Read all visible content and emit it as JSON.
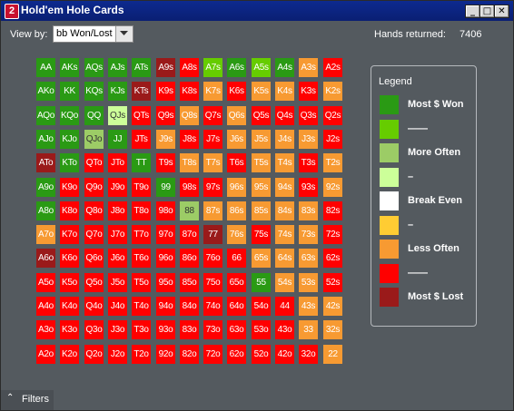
{
  "window": {
    "title": "Hold'em Hole Cards",
    "icon_label": "2",
    "min_glyph": "_",
    "max_glyph": "□",
    "close_glyph": "✕"
  },
  "toolbar": {
    "view_label": "View by:",
    "view_value": "bb Won/Lost",
    "hands_label": "Hands returned:",
    "hands_value": "7406"
  },
  "colors": {
    "G": "#2a9a14",
    "L": "#66cc00",
    "O": "#f79a32",
    "R": "#ff0000",
    "D": "#9a1a1a",
    "P": "#9ccc66",
    "Y": "#ccff99",
    "W": "#ffffff",
    "Yl": "#ffcc33"
  },
  "grid": [
    [
      "AA",
      "AKs",
      "AQs",
      "AJs",
      "ATs",
      "A9s",
      "A8s",
      "A7s",
      "A6s",
      "A5s",
      "A4s",
      "A3s",
      "A2s"
    ],
    [
      "AKo",
      "KK",
      "KQs",
      "KJs",
      "KTs",
      "K9s",
      "K8s",
      "K7s",
      "K6s",
      "K5s",
      "K4s",
      "K3s",
      "K2s"
    ],
    [
      "AQo",
      "KQo",
      "QQ",
      "QJs",
      "QTs",
      "Q9s",
      "Q8s",
      "Q7s",
      "Q6s",
      "Q5s",
      "Q4s",
      "Q3s",
      "Q2s"
    ],
    [
      "AJo",
      "KJo",
      "QJo",
      "JJ",
      "JTs",
      "J9s",
      "J8s",
      "J7s",
      "J6s",
      "J5s",
      "J4s",
      "J3s",
      "J2s"
    ],
    [
      "ATo",
      "KTo",
      "QTo",
      "JTo",
      "TT",
      "T9s",
      "T8s",
      "T7s",
      "T6s",
      "T5s",
      "T4s",
      "T3s",
      "T2s"
    ],
    [
      "A9o",
      "K9o",
      "Q9o",
      "J9o",
      "T9o",
      "99",
      "98s",
      "97s",
      "96s",
      "95s",
      "94s",
      "93s",
      "92s"
    ],
    [
      "A8o",
      "K8o",
      "Q8o",
      "J8o",
      "T8o",
      "98o",
      "88",
      "87s",
      "86s",
      "85s",
      "84s",
      "83s",
      "82s"
    ],
    [
      "A7o",
      "K7o",
      "Q7o",
      "J7o",
      "T7o",
      "97o",
      "87o",
      "77",
      "76s",
      "75s",
      "74s",
      "73s",
      "72s"
    ],
    [
      "A6o",
      "K6o",
      "Q6o",
      "J6o",
      "T6o",
      "96o",
      "86o",
      "76o",
      "66",
      "65s",
      "64s",
      "63s",
      "62s"
    ],
    [
      "A5o",
      "K5o",
      "Q5o",
      "J5o",
      "T5o",
      "95o",
      "85o",
      "75o",
      "65o",
      "55",
      "54s",
      "53s",
      "52s"
    ],
    [
      "A4o",
      "K4o",
      "Q4o",
      "J4o",
      "T4o",
      "94o",
      "84o",
      "74o",
      "64o",
      "54o",
      "44",
      "43s",
      "42s"
    ],
    [
      "A3o",
      "K3o",
      "Q3o",
      "J3o",
      "T3o",
      "93o",
      "83o",
      "73o",
      "63o",
      "53o",
      "43o",
      "33",
      "32s"
    ],
    [
      "A2o",
      "K2o",
      "Q2o",
      "J2o",
      "T2o",
      "92o",
      "82o",
      "72o",
      "62o",
      "52o",
      "42o",
      "32o",
      "22"
    ]
  ],
  "grid_colors": [
    [
      "G",
      "G",
      "G",
      "G",
      "G",
      "D",
      "R",
      "L",
      "G",
      "L",
      "G",
      "O",
      "R"
    ],
    [
      "G",
      "G",
      "G",
      "G",
      "D",
      "R",
      "R",
      "O",
      "R",
      "O",
      "O",
      "R",
      "O"
    ],
    [
      "G",
      "G",
      "G",
      "Y",
      "R",
      "R",
      "O",
      "R",
      "O",
      "R",
      "R",
      "R",
      "R"
    ],
    [
      "G",
      "G",
      "P",
      "G",
      "R",
      "O",
      "R",
      "R",
      "O",
      "O",
      "O",
      "O",
      "R"
    ],
    [
      "D",
      "G",
      "R",
      "R",
      "G",
      "R",
      "O",
      "O",
      "R",
      "O",
      "O",
      "R",
      "O"
    ],
    [
      "G",
      "R",
      "R",
      "R",
      "R",
      "G",
      "R",
      "R",
      "O",
      "O",
      "O",
      "R",
      "O"
    ],
    [
      "G",
      "R",
      "R",
      "R",
      "R",
      "R",
      "P",
      "O",
      "O",
      "O",
      "O",
      "O",
      "R"
    ],
    [
      "O",
      "R",
      "R",
      "R",
      "R",
      "R",
      "R",
      "D",
      "O",
      "R",
      "O",
      "O",
      "R"
    ],
    [
      "D",
      "R",
      "R",
      "R",
      "R",
      "R",
      "R",
      "R",
      "R",
      "O",
      "O",
      "O",
      "R"
    ],
    [
      "R",
      "R",
      "R",
      "R",
      "R",
      "R",
      "R",
      "R",
      "R",
      "G",
      "O",
      "O",
      "R"
    ],
    [
      "R",
      "R",
      "R",
      "R",
      "R",
      "R",
      "R",
      "R",
      "R",
      "R",
      "R",
      "O",
      "O"
    ],
    [
      "R",
      "R",
      "R",
      "R",
      "R",
      "R",
      "R",
      "R",
      "R",
      "R",
      "R",
      "O",
      "O"
    ],
    [
      "R",
      "R",
      "R",
      "R",
      "R",
      "R",
      "R",
      "R",
      "R",
      "R",
      "R",
      "R",
      "O"
    ]
  ],
  "legend": {
    "title": "Legend",
    "items": [
      {
        "color": "#2a9a14",
        "label": "Most $ Won"
      },
      {
        "color": "#66cc00",
        "label": "——"
      },
      {
        "color": "#9ccc66",
        "label": "More Often"
      },
      {
        "color": "#ccff99",
        "label": "–"
      },
      {
        "color": "#ffffff",
        "label": "Break Even"
      },
      {
        "color": "#ffcc33",
        "label": "–"
      },
      {
        "color": "#f79a32",
        "label": "Less Often"
      },
      {
        "color": "#ff0000",
        "label": "——"
      },
      {
        "color": "#9a1a1a",
        "label": "Most $ Lost"
      }
    ]
  },
  "footer": {
    "chevron": "⌃",
    "filters_label": "Filters"
  }
}
